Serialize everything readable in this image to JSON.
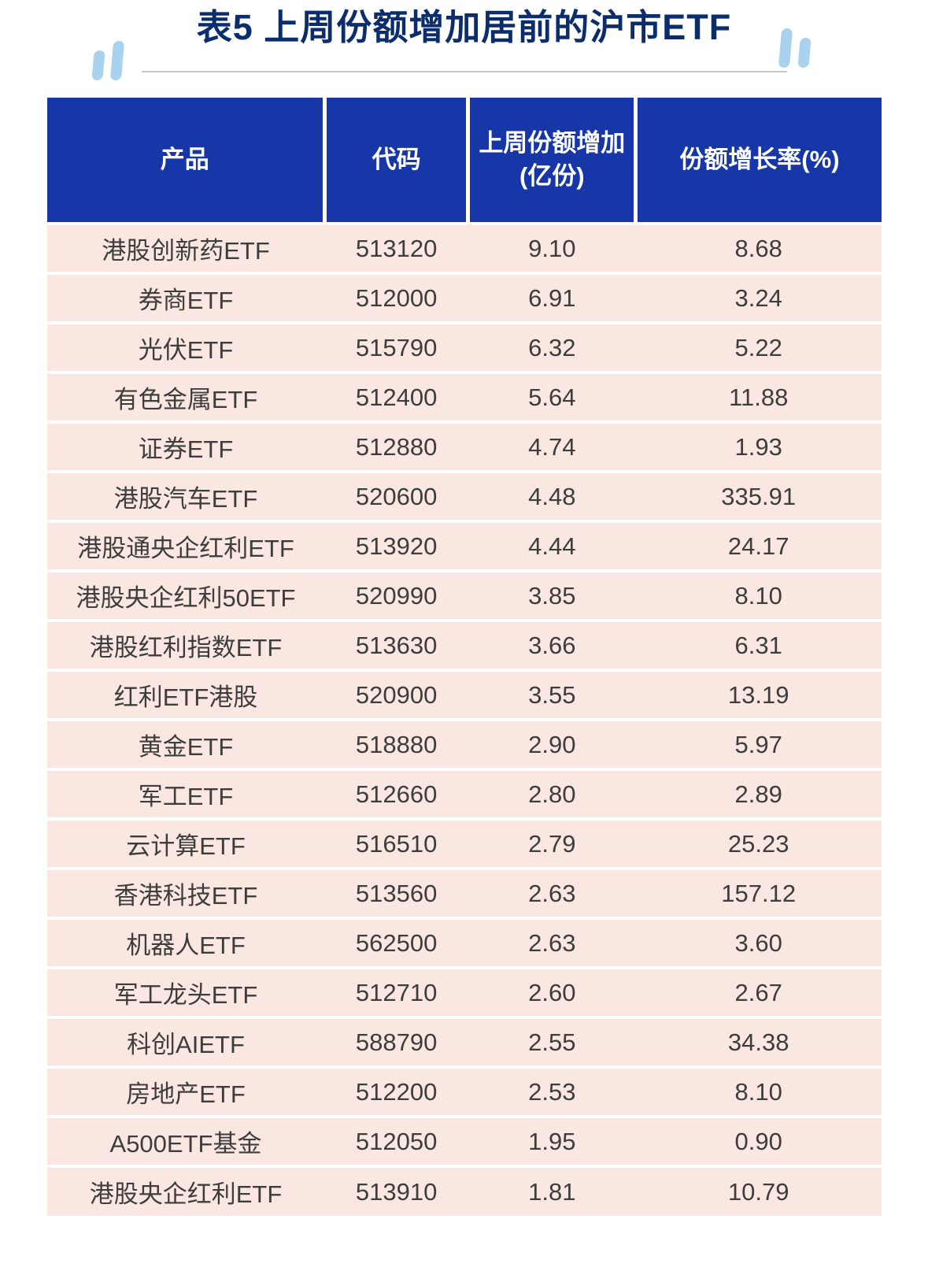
{
  "title": "表5 上周份额增加居前的沪市ETF",
  "colors": {
    "header_bg": "#1737a8",
    "row_bg": "#fbe7e1",
    "title_color": "#0c2d6b",
    "decoration_color": "#a9d2ee",
    "body_text": "#3d3d3d"
  },
  "chart_data": {
    "type": "table",
    "title": "表5 上周份额增加居前的沪市ETF",
    "columns": [
      "产品",
      "代码",
      "上周份额增加\n(亿份)",
      "份额增长率(%)"
    ],
    "rows": [
      [
        "港股创新药ETF",
        "513120",
        "9.10",
        "8.68"
      ],
      [
        "券商ETF",
        "512000",
        "6.91",
        "3.24"
      ],
      [
        "光伏ETF",
        "515790",
        "6.32",
        "5.22"
      ],
      [
        "有色金属ETF",
        "512400",
        "5.64",
        "11.88"
      ],
      [
        "证券ETF",
        "512880",
        "4.74",
        "1.93"
      ],
      [
        "港股汽车ETF",
        "520600",
        "4.48",
        "335.91"
      ],
      [
        "港股通央企红利ETF",
        "513920",
        "4.44",
        "24.17"
      ],
      [
        "港股央企红利50ETF",
        "520990",
        "3.85",
        "8.10"
      ],
      [
        "港股红利指数ETF",
        "513630",
        "3.66",
        "6.31"
      ],
      [
        "红利ETF港股",
        "520900",
        "3.55",
        "13.19"
      ],
      [
        "黄金ETF",
        "518880",
        "2.90",
        "5.97"
      ],
      [
        "军工ETF",
        "512660",
        "2.80",
        "2.89"
      ],
      [
        "云计算ETF",
        "516510",
        "2.79",
        "25.23"
      ],
      [
        "香港科技ETF",
        "513560",
        "2.63",
        "157.12"
      ],
      [
        "机器人ETF",
        "562500",
        "2.63",
        "3.60"
      ],
      [
        "军工龙头ETF",
        "512710",
        "2.60",
        "2.67"
      ],
      [
        "科创AIETF",
        "588790",
        "2.55",
        "34.38"
      ],
      [
        "房地产ETF",
        "512200",
        "2.53",
        "8.10"
      ],
      [
        "A500ETF基金",
        "512050",
        "1.95",
        "0.90"
      ],
      [
        "港股央企红利ETF",
        "513910",
        "1.81",
        "10.79"
      ]
    ]
  }
}
